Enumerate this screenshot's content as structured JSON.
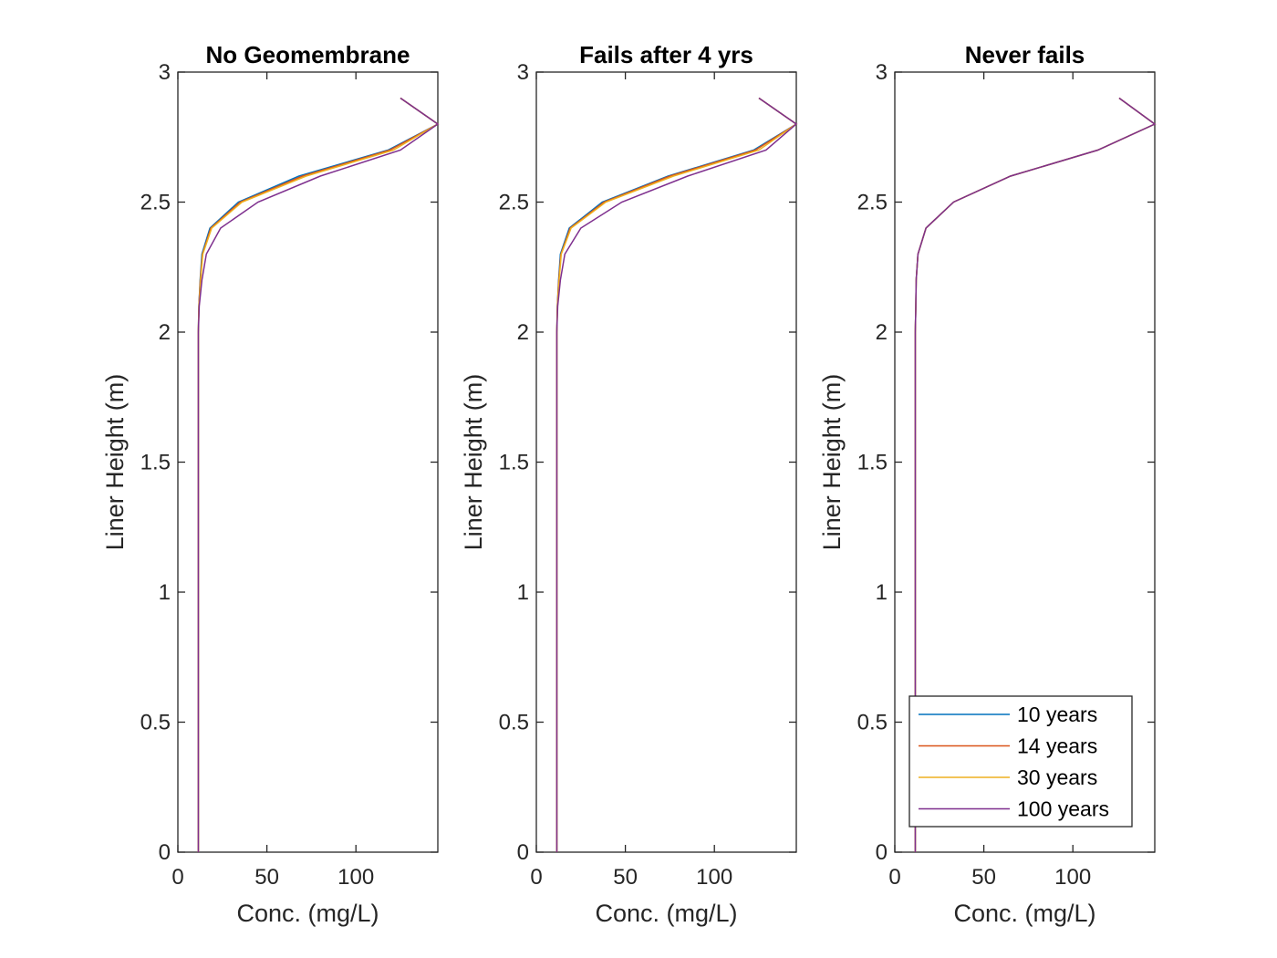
{
  "chart_data": [
    {
      "type": "line",
      "title": "No Geomembrane",
      "xlabel": "Conc. (mg/L)",
      "ylabel": "Liner Height (m)",
      "xlim": [
        0,
        146
      ],
      "xticks": [
        0,
        50,
        100
      ],
      "ylim": [
        0,
        3
      ],
      "yticks": [
        0,
        0.5,
        1,
        1.5,
        2,
        2.5,
        3
      ],
      "series": [
        {
          "name": "10 years",
          "color": "#0072BD",
          "x": [
            11.5,
            11.5,
            11.8,
            12.5,
            13.5,
            18,
            34,
            68,
            118,
            146,
            125
          ],
          "values": [
            0,
            2.0,
            2.1,
            2.2,
            2.3,
            2.4,
            2.5,
            2.6,
            2.7,
            2.8,
            2.9
          ]
        },
        {
          "name": "14 years",
          "color": "#D95319",
          "x": [
            11.5,
            11.5,
            11.8,
            12.6,
            13.8,
            18.5,
            35,
            70,
            119,
            146,
            125
          ],
          "values": [
            0,
            2.0,
            2.1,
            2.2,
            2.3,
            2.4,
            2.5,
            2.6,
            2.7,
            2.8,
            2.9
          ]
        },
        {
          "name": "30 years",
          "color": "#EDB120",
          "x": [
            11.5,
            11.5,
            11.9,
            12.8,
            14,
            19,
            36,
            72,
            121,
            146,
            125
          ],
          "values": [
            0,
            2.0,
            2.1,
            2.2,
            2.3,
            2.4,
            2.5,
            2.6,
            2.7,
            2.8,
            2.9
          ]
        },
        {
          "name": "100 years",
          "color": "#7E2F8E",
          "x": [
            11.5,
            11.5,
            12,
            13.5,
            16,
            24,
            45,
            80,
            125,
            146,
            125
          ],
          "values": [
            0,
            2.0,
            2.1,
            2.2,
            2.3,
            2.4,
            2.5,
            2.6,
            2.7,
            2.8,
            2.9
          ]
        }
      ]
    },
    {
      "type": "line",
      "title": "Fails after 4 yrs",
      "xlabel": "Conc. (mg/L)",
      "ylabel": "Liner Height (m)",
      "xlim": [
        0,
        146
      ],
      "xticks": [
        0,
        50,
        100
      ],
      "ylim": [
        0,
        3
      ],
      "yticks": [
        0,
        0.5,
        1,
        1.5,
        2,
        2.5,
        3
      ],
      "series": [
        {
          "name": "10 years",
          "color": "#0072BD",
          "x": [
            11.5,
            11.5,
            11.8,
            12.5,
            13.5,
            18.5,
            37,
            74,
            122,
            146,
            125
          ],
          "values": [
            0,
            2.0,
            2.1,
            2.2,
            2.3,
            2.4,
            2.5,
            2.6,
            2.7,
            2.8,
            2.9
          ]
        },
        {
          "name": "14 years",
          "color": "#D95319",
          "x": [
            11.5,
            11.5,
            11.8,
            12.6,
            13.8,
            19,
            38,
            75,
            123,
            146,
            125
          ],
          "values": [
            0,
            2.0,
            2.1,
            2.2,
            2.3,
            2.4,
            2.5,
            2.6,
            2.7,
            2.8,
            2.9
          ]
        },
        {
          "name": "30 years",
          "color": "#EDB120",
          "x": [
            11.5,
            11.5,
            11.9,
            12.8,
            14,
            19.5,
            39,
            77,
            125,
            146,
            125
          ],
          "values": [
            0,
            2.0,
            2.1,
            2.2,
            2.3,
            2.4,
            2.5,
            2.6,
            2.7,
            2.8,
            2.9
          ]
        },
        {
          "name": "100 years",
          "color": "#7E2F8E",
          "x": [
            11.5,
            11.5,
            12,
            13.5,
            16,
            25,
            48,
            85,
            129,
            146,
            125
          ],
          "values": [
            0,
            2.0,
            2.1,
            2.2,
            2.3,
            2.4,
            2.5,
            2.6,
            2.7,
            2.8,
            2.9
          ]
        }
      ]
    },
    {
      "type": "line",
      "title": "Never fails",
      "xlabel": "Conc. (mg/L)",
      "ylabel": "Liner Height (m)",
      "xlim": [
        0,
        146
      ],
      "xticks": [
        0,
        50,
        100
      ],
      "ylim": [
        0,
        3
      ],
      "yticks": [
        0,
        0.5,
        1,
        1.5,
        2,
        2.5,
        3
      ],
      "legend": "lower right",
      "series": [
        {
          "name": "10 years",
          "color": "#0072BD",
          "x": [
            11.5,
            11.5,
            11.8,
            12,
            13,
            17.5,
            33,
            65,
            114,
            146,
            126
          ],
          "values": [
            0,
            2.0,
            2.1,
            2.2,
            2.3,
            2.4,
            2.5,
            2.6,
            2.7,
            2.8,
            2.9
          ]
        },
        {
          "name": "14 years",
          "color": "#D95319",
          "x": [
            11.5,
            11.5,
            11.8,
            12,
            13,
            17.5,
            33,
            65,
            114,
            146,
            126
          ],
          "values": [
            0,
            2.0,
            2.1,
            2.2,
            2.3,
            2.4,
            2.5,
            2.6,
            2.7,
            2.8,
            2.9
          ]
        },
        {
          "name": "30 years",
          "color": "#EDB120",
          "x": [
            11.5,
            11.5,
            11.8,
            12,
            13,
            17.5,
            33,
            65,
            114,
            146,
            126
          ],
          "values": [
            0,
            2.0,
            2.1,
            2.2,
            2.3,
            2.4,
            2.5,
            2.6,
            2.7,
            2.8,
            2.9
          ]
        },
        {
          "name": "100 years",
          "color": "#7E2F8E",
          "x": [
            11.5,
            11.5,
            11.8,
            12,
            13,
            17.5,
            33,
            65,
            114,
            146,
            126
          ],
          "values": [
            0,
            2.0,
            2.1,
            2.2,
            2.3,
            2.4,
            2.5,
            2.6,
            2.7,
            2.8,
            2.9
          ]
        }
      ]
    }
  ]
}
